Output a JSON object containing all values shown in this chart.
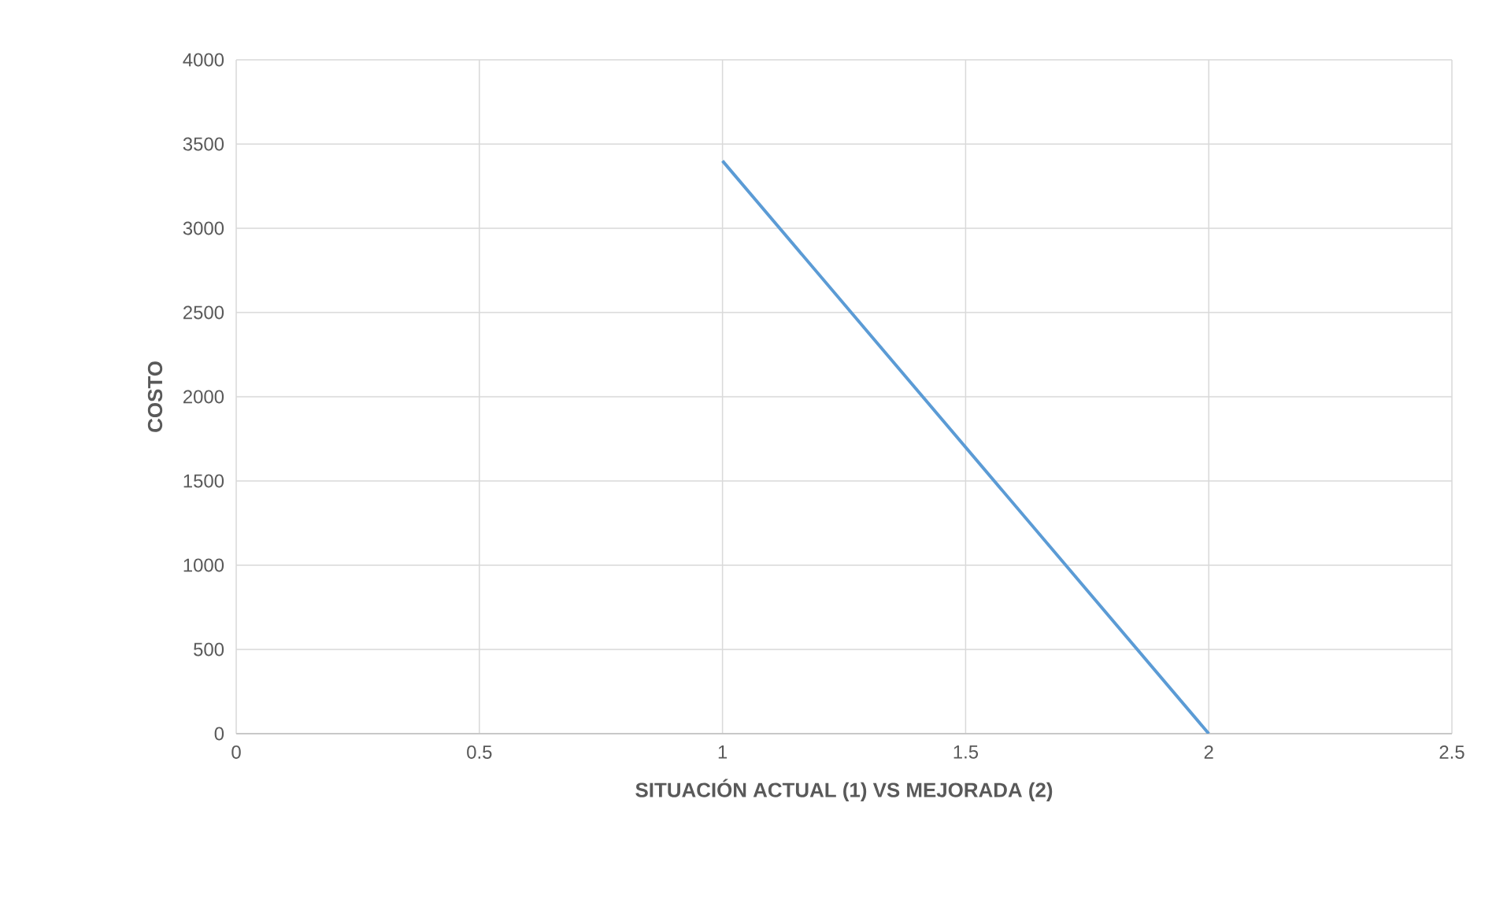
{
  "chart_data": {
    "type": "line",
    "xlabel": "SITUACIÓN ACTUAL (1) VS MEJORADA (2)",
    "ylabel": "COSTO",
    "x": [
      1,
      2
    ],
    "series": [
      {
        "color": "#5b9bd5",
        "values": [
          3400,
          0
        ]
      }
    ],
    "xlim": [
      0,
      2.5
    ],
    "xticks": [
      0,
      0.5,
      1,
      1.5,
      2,
      2.5
    ],
    "ylim": [
      0,
      4000
    ],
    "yticks": [
      0,
      500,
      1000,
      1500,
      2000,
      2500,
      3000,
      3500,
      4000
    ],
    "grid": true,
    "marker": "none",
    "line_style": "solid",
    "legend": false
  }
}
